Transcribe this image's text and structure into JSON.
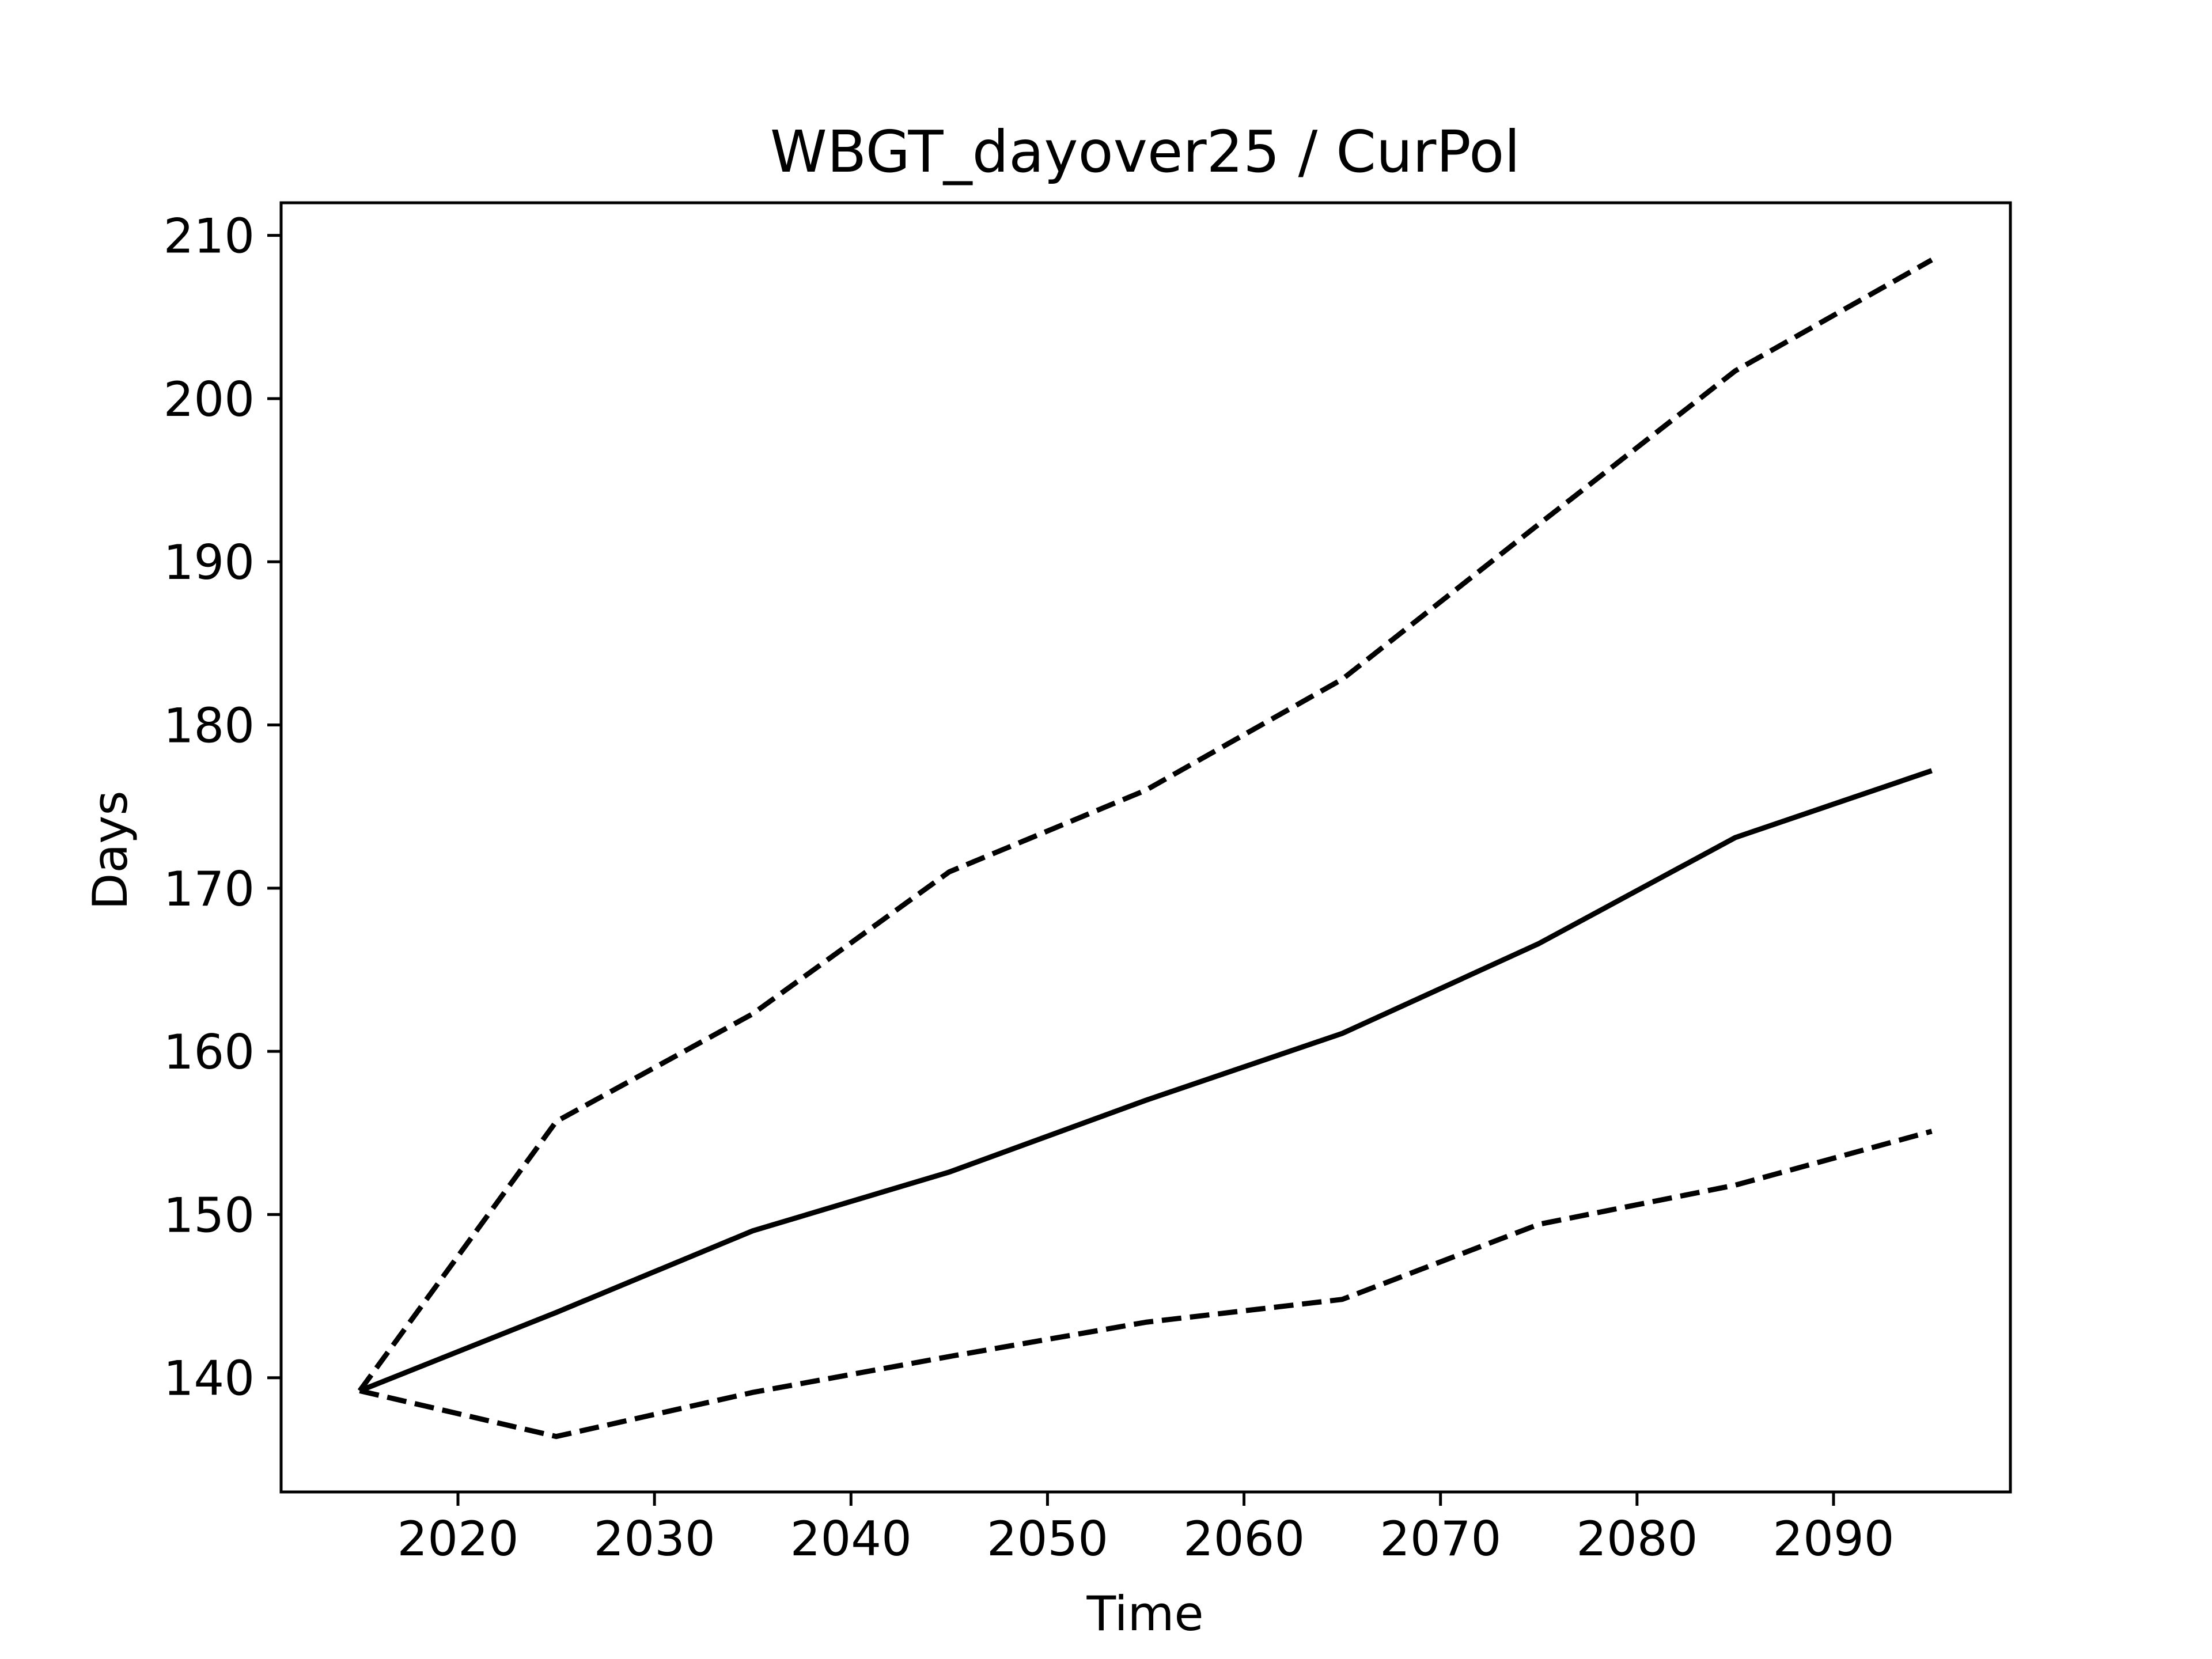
{
  "chart_data": {
    "type": "line",
    "title": "WBGT_dayover25 / CurPol",
    "xlabel": "Time",
    "ylabel": "Days",
    "xlim": [
      2011,
      2099
    ],
    "ylim": [
      133,
      212
    ],
    "x_ticks": [
      2020,
      2030,
      2040,
      2050,
      2060,
      2070,
      2080,
      2090
    ],
    "y_ticks": [
      140,
      150,
      160,
      170,
      180,
      190,
      200,
      210
    ],
    "x": [
      2015,
      2025,
      2035,
      2045,
      2055,
      2065,
      2075,
      2085,
      2095
    ],
    "grid": false,
    "legend": "none",
    "series": [
      {
        "style": "solid",
        "color": "#000000",
        "values": [
          139.2,
          144.0,
          149.0,
          152.6,
          157.0,
          161.1,
          166.6,
          173.1,
          177.2
        ]
      },
      {
        "style": "dashed",
        "color": "#000000",
        "values": [
          139.2,
          155.7,
          162.3,
          171.0,
          176.0,
          182.8,
          192.3,
          201.7,
          208.5
        ]
      },
      {
        "style": "dashed",
        "color": "#000000",
        "values": [
          139.2,
          136.4,
          139.1,
          141.3,
          143.4,
          144.8,
          149.4,
          151.8,
          155.1
        ]
      }
    ]
  }
}
